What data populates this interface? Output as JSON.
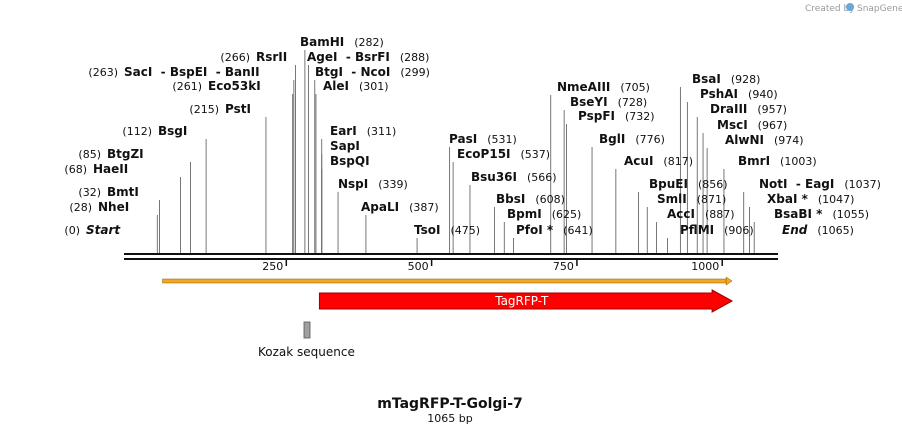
{
  "credit": {
    "text": "Created by",
    "brand": "SnapGene"
  },
  "title": "mTagRFP-T-Golgi-7",
  "subtitle": "1065 bp",
  "length": 1065,
  "ruler_ticks": [
    250,
    500,
    750,
    1000
  ],
  "enzymes": [
    {
      "name": "Start",
      "pos": 0,
      "pos_label": "(0)",
      "side": "left",
      "italic": true
    },
    {
      "name": "NheI",
      "pos": 28,
      "pos_label": "(28)",
      "side": "left"
    },
    {
      "name": "BmtI",
      "pos": 32,
      "pos_label": "(32)",
      "side": "left"
    },
    {
      "name": "HaeII",
      "pos": 68,
      "pos_label": "(68)",
      "side": "left"
    },
    {
      "name": "BtgZI",
      "pos": 85,
      "pos_label": "(85)",
      "side": "left"
    },
    {
      "name": "BsgI",
      "pos": 112,
      "pos_label": "(112)",
      "side": "left"
    },
    {
      "name": "PstI",
      "pos": 215,
      "pos_label": "(215)",
      "side": "left"
    },
    {
      "name": "Eco53kI",
      "pos": 261,
      "pos_label": "(261)",
      "side": "left"
    },
    {
      "name": "SacI  - BspEI  - BanII",
      "pos": 263,
      "pos_label": "(263)",
      "side": "left"
    },
    {
      "name": "RsrII",
      "pos": 266,
      "pos_label": "(266)",
      "side": "left"
    },
    {
      "name": "BamHI",
      "pos": 282,
      "pos_label": "(282)",
      "side": "right"
    },
    {
      "name": "AgeI  - BsrFI",
      "pos": 288,
      "pos_label": "(288)",
      "side": "right"
    },
    {
      "name": "BtgI  - NcoI",
      "pos": 299,
      "pos_label": "(299)",
      "side": "right"
    },
    {
      "name": "AleI",
      "pos": 301,
      "pos_label": "(301)",
      "side": "right"
    },
    {
      "name": "EarI",
      "pos": 311,
      "pos_label": "(311)",
      "side": "right"
    },
    {
      "name": "SapI",
      "pos": 311,
      "pos_label": "",
      "side": "right"
    },
    {
      "name": "BspQI",
      "pos": 311,
      "pos_label": "",
      "side": "right"
    },
    {
      "name": "NspI",
      "pos": 339,
      "pos_label": "(339)",
      "side": "right"
    },
    {
      "name": "ApaLI",
      "pos": 387,
      "pos_label": "(387)",
      "side": "right"
    },
    {
      "name": "TsoI",
      "pos": 475,
      "pos_label": "(475)",
      "side": "right"
    },
    {
      "name": "PasI",
      "pos": 531,
      "pos_label": "(531)",
      "side": "right"
    },
    {
      "name": "EcoP15I",
      "pos": 537,
      "pos_label": "(537)",
      "side": "right"
    },
    {
      "name": "Bsu36I",
      "pos": 566,
      "pos_label": "(566)",
      "side": "right"
    },
    {
      "name": "BbsI",
      "pos": 608,
      "pos_label": "(608)",
      "side": "right"
    },
    {
      "name": "BpmI",
      "pos": 625,
      "pos_label": "(625)",
      "side": "right"
    },
    {
      "name": "PfoI *",
      "pos": 641,
      "pos_label": "(641)",
      "side": "right"
    },
    {
      "name": "NmeAIII",
      "pos": 705,
      "pos_label": "(705)",
      "side": "right"
    },
    {
      "name": "BseYI",
      "pos": 728,
      "pos_label": "(728)",
      "side": "right"
    },
    {
      "name": "PspFI",
      "pos": 732,
      "pos_label": "(732)",
      "side": "right"
    },
    {
      "name": "BglI",
      "pos": 776,
      "pos_label": "(776)",
      "side": "right"
    },
    {
      "name": "AcuI",
      "pos": 817,
      "pos_label": "(817)",
      "side": "right"
    },
    {
      "name": "BpuEI",
      "pos": 856,
      "pos_label": "(856)",
      "side": "right"
    },
    {
      "name": "SmlI",
      "pos": 871,
      "pos_label": "(871)",
      "side": "right"
    },
    {
      "name": "AccI",
      "pos": 887,
      "pos_label": "(887)",
      "side": "right"
    },
    {
      "name": "PflMI",
      "pos": 906,
      "pos_label": "(906)",
      "side": "right"
    },
    {
      "name": "BsaI",
      "pos": 928,
      "pos_label": "(928)",
      "side": "right"
    },
    {
      "name": "PshAI",
      "pos": 940,
      "pos_label": "(940)",
      "side": "right"
    },
    {
      "name": "DraIII",
      "pos": 957,
      "pos_label": "(957)",
      "side": "right"
    },
    {
      "name": "MscI",
      "pos": 967,
      "pos_label": "(967)",
      "side": "right"
    },
    {
      "name": "AlwNI",
      "pos": 974,
      "pos_label": "(974)",
      "side": "right"
    },
    {
      "name": "BmrI",
      "pos": 1003,
      "pos_label": "(1003)",
      "side": "right"
    },
    {
      "name": "NotI  - EagI",
      "pos": 1037,
      "pos_label": "(1037)",
      "side": "right"
    },
    {
      "name": "XbaI *",
      "pos": 1047,
      "pos_label": "(1047)",
      "side": "right"
    },
    {
      "name": "BsaBI *",
      "pos": 1055,
      "pos_label": "(1055)",
      "side": "right"
    },
    {
      "name": "End",
      "pos": 1065,
      "pos_label": "(1065)",
      "side": "right",
      "italic": true
    }
  ],
  "features": [
    {
      "name": "",
      "start": 37,
      "end": 1017,
      "color": "#f5a623",
      "kind": "orf"
    },
    {
      "name": "TagRFP-T",
      "start": 307,
      "end": 1017,
      "color": "#ff0000",
      "kind": "arrow"
    },
    {
      "name": "Kozak sequence",
      "start": 301,
      "end": 311,
      "color": "#a0a0a0",
      "kind": "box"
    }
  ]
}
